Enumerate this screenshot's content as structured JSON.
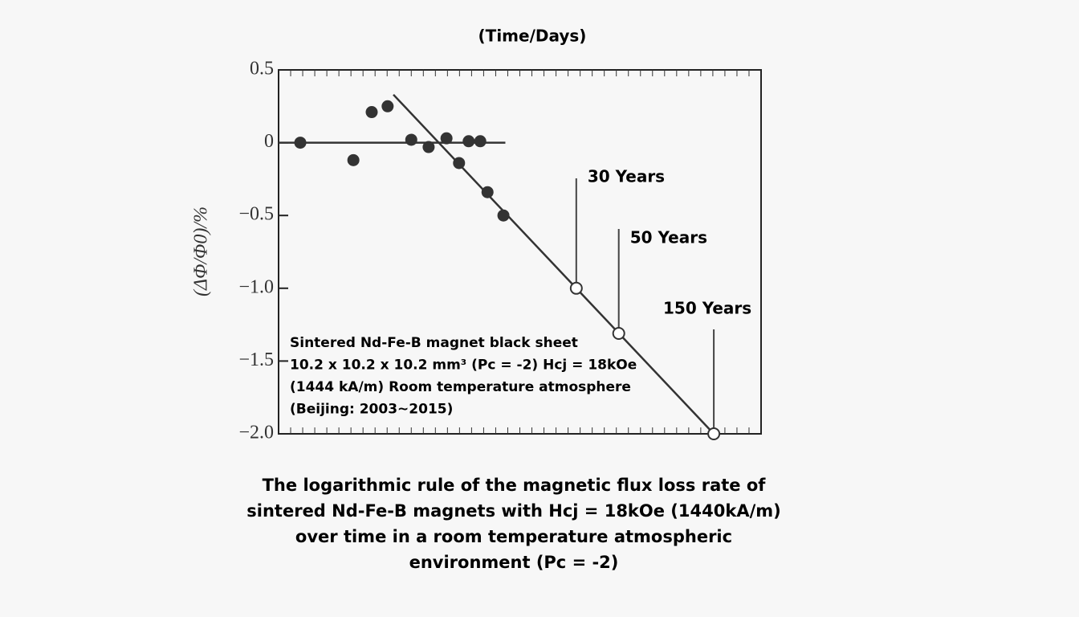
{
  "chart_data": {
    "type": "scatter",
    "title": "(Time/Days)",
    "y_label": "(ΔΦ/Φ0)/%",
    "ylim": [
      -2.0,
      0.5
    ],
    "yticks": [
      0.5,
      0,
      {
        "value": -0.5,
        "label": "−0.5"
      },
      {
        "value": -1.0,
        "label": "−1.0"
      },
      {
        "value": -1.5,
        "label": "−1.5"
      },
      {
        "value": -2.0,
        "label": "−2.0"
      }
    ],
    "xlim": [
      0,
      100
    ],
    "measured": {
      "x": [
        4.5,
        15.5,
        19.3,
        22.6,
        27.5,
        31.1,
        34.8,
        37.4,
        39.4,
        41.8,
        43.3,
        46.6
      ],
      "values": [
        0,
        -0.12,
        0.21,
        0.25,
        0.02,
        -0.03,
        0.03,
        -0.14,
        0.01,
        0.01,
        -0.34,
        -0.5
      ]
    },
    "projected": {
      "x": [
        61.7,
        70.5,
        90.2
      ],
      "values": [
        -1.0,
        -1.31,
        -2.0
      ]
    },
    "lines": [
      {
        "x": [
          0,
          47
        ],
        "values": [
          0,
          0
        ]
      },
      {
        "x": [
          23.8,
          90.2
        ],
        "values": [
          0.33,
          -2.0
        ]
      }
    ],
    "annotations": [
      "30 Years",
      "50 Years",
      "150 Years"
    ],
    "note": [
      "Sintered Nd-Fe-B magnet black sheet",
      "10.2 x 10.2 x 10.2 mm³ (Pc = -2) Hcj = 18kOe",
      "(1444 kA/m) Room temperature atmosphere",
      "(Beijing: 2003~2015)"
    ],
    "caption": [
      "The logarithmic rule of the magnetic flux loss rate of",
      "sintered Nd-Fe-B magnets with Hcj = 18kOe (1440kA/m)",
      "over time in a room temperature atmospheric",
      "environment (Pc = -2)"
    ]
  }
}
